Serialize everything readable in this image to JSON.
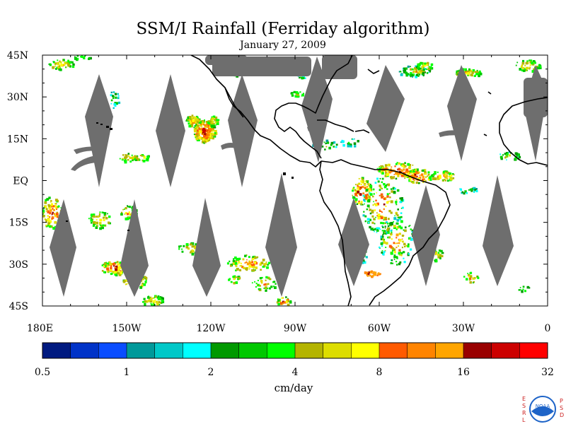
{
  "title": "SSM/I Rainfall (Ferriday algorithm)",
  "subtitle": "January 27, 2009",
  "map": {
    "projection": "equirectangular",
    "lon_range": [
      180,
      360
    ],
    "lat_range": [
      -45,
      45
    ],
    "land_outline_color": "#000000",
    "no_data_color": "#6e6e6e",
    "lat_ticks": [
      {
        "lat": 45,
        "label": "45N"
      },
      {
        "lat": 30,
        "label": "30N"
      },
      {
        "lat": 15,
        "label": "15N"
      },
      {
        "lat": 0,
        "label": "EQ"
      },
      {
        "lat": -15,
        "label": "15S"
      },
      {
        "lat": -30,
        "label": "30S"
      },
      {
        "lat": -45,
        "label": "45S"
      }
    ],
    "lon_ticks": [
      {
        "lon": 180,
        "label": "180E"
      },
      {
        "lon": 210,
        "label": "150W"
      },
      {
        "lon": 240,
        "label": "120W"
      },
      {
        "lon": 270,
        "label": "90W"
      },
      {
        "lon": 300,
        "label": "60W"
      },
      {
        "lon": 330,
        "label": "30W"
      },
      {
        "lon": 360,
        "label": "0"
      }
    ]
  },
  "legend": {
    "units": "cm/day",
    "colors": [
      "#001a80",
      "#0033c8",
      "#0a4dff",
      "#00999a",
      "#00c8c8",
      "#00ffff",
      "#009900",
      "#00c800",
      "#00ff00",
      "#b4b400",
      "#dddd00",
      "#ffff00",
      "#ff5a00",
      "#ff8400",
      "#ffa500",
      "#990000",
      "#cc0000",
      "#ff0000"
    ],
    "labels": [
      "0.5",
      "1",
      "2",
      "4",
      "8",
      "16",
      "32"
    ]
  },
  "logo": {
    "left_letters": [
      "E",
      "S",
      "R",
      "L"
    ],
    "right_letters": [
      "P",
      "S",
      "D"
    ],
    "badge_text": "NOAA",
    "letter_color": "#cc2222",
    "badge_color": "#1e64c8"
  }
}
